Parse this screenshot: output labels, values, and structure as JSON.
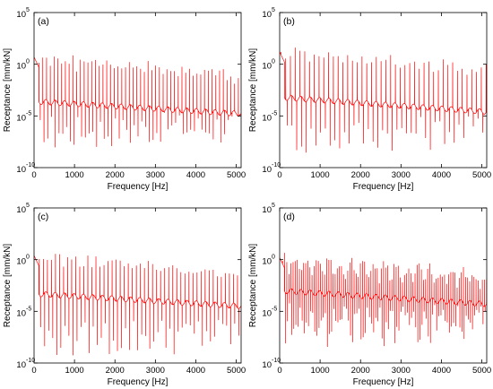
{
  "chart_data": [
    {
      "panel": "(a)",
      "type": "line",
      "xlabel": "Frequency [Hz]",
      "ylabel": "Receptance [mm/kN]",
      "xlim": [
        0,
        5120
      ],
      "ylim_log10": [
        -10,
        5
      ],
      "yscale": "log",
      "xticks": [
        "0",
        "1000",
        "2000",
        "3000",
        "4000",
        "5000"
      ],
      "yticks": [
        {
          "base": "10",
          "exp": "-10"
        },
        {
          "base": "10",
          "exp": "-5"
        },
        {
          "base": "10",
          "exp": "0"
        },
        {
          "base": "10",
          "exp": "5"
        }
      ],
      "series": [
        {
          "color": "#ff0000",
          "resonance_spacing_hz": 93,
          "first_resonance_hz": 30,
          "peak_top_log10": 1.3,
          "valley_min_log10": -8.6,
          "baseline_start_log10": -3.6,
          "baseline_end_log10": -4.8
        }
      ]
    },
    {
      "panel": "(b)",
      "type": "line",
      "xlabel": "Frequency [Hz]",
      "ylabel": "Receptance [mm/kN]",
      "xlim": [
        0,
        5120
      ],
      "ylim_log10": [
        -10,
        5
      ],
      "yscale": "log",
      "xticks": [
        "0",
        "1000",
        "2000",
        "3000",
        "4000",
        "5000"
      ],
      "yticks": [
        {
          "base": "10",
          "exp": "-10"
        },
        {
          "base": "10",
          "exp": "-5"
        },
        {
          "base": "10",
          "exp": "0"
        },
        {
          "base": "10",
          "exp": "5"
        }
      ],
      "series": [
        {
          "color": "#ff0000",
          "resonance_spacing_hz": 118,
          "first_resonance_hz": 30,
          "peak_top_log10": 1.8,
          "valley_min_log10": -9.0,
          "baseline_start_log10": -3.2,
          "baseline_end_log10": -4.6
        }
      ]
    },
    {
      "panel": "(c)",
      "type": "line",
      "xlabel": "Frequency [Hz]",
      "ylabel": "Receptance [mm/kN]",
      "xlim": [
        0,
        5120
      ],
      "ylim_log10": [
        -10,
        5
      ],
      "yscale": "log",
      "xticks": [
        "0",
        "1000",
        "2000",
        "3000",
        "4000",
        "5000"
      ],
      "yticks": [
        {
          "base": "10",
          "exp": "-10"
        },
        {
          "base": "10",
          "exp": "-5"
        },
        {
          "base": "10",
          "exp": "0"
        },
        {
          "base": "10",
          "exp": "5"
        }
      ],
      "series": [
        {
          "color": "#ff0000",
          "resonance_spacing_hz": 100,
          "first_resonance_hz": 30,
          "peak_top_log10": 1.0,
          "valley_min_log10": -9.8,
          "baseline_start_log10": -3.3,
          "baseline_end_log10": -4.5
        }
      ]
    },
    {
      "panel": "(d)",
      "type": "line",
      "xlabel": "Frequency [Hz]",
      "ylabel": "Receptance [mm/kN]",
      "xlim": [
        0,
        5120
      ],
      "ylim_log10": [
        -10,
        5
      ],
      "yscale": "log",
      "xticks": [
        "0",
        "1000",
        "2000",
        "3000",
        "4000",
        "5000"
      ],
      "yticks": [
        {
          "base": "10",
          "exp": "-10"
        },
        {
          "base": "10",
          "exp": "-5"
        },
        {
          "base": "10",
          "exp": "0"
        },
        {
          "base": "10",
          "exp": "5"
        }
      ],
      "series": [
        {
          "color": "#ff0000",
          "resonance_spacing_hz": 52,
          "first_resonance_hz": 20,
          "peak_top_log10": 0.8,
          "valley_min_log10": -8.8,
          "baseline_start_log10": -3.0,
          "baseline_end_log10": -4.3
        }
      ]
    }
  ]
}
